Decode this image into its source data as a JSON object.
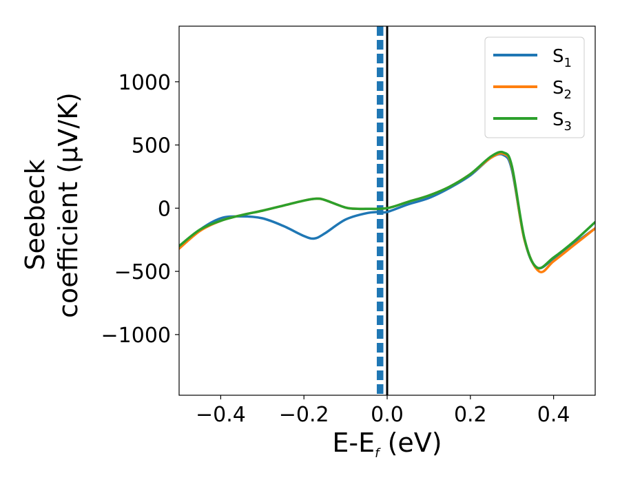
{
  "chart_data": {
    "type": "line",
    "xlabel": "E-E",
    "xlabel_sub": "f",
    "xlabel_unit": " (eV)",
    "ylabel_line1": "Seebeck",
    "ylabel_line2": "coefficient  (μV/K)",
    "xlim": [
      -0.5,
      0.5
    ],
    "ylim": [
      -1480,
      1440
    ],
    "xticks": [
      -0.4,
      -0.2,
      0.0,
      0.2,
      0.4
    ],
    "xtick_labels": [
      "−0.4",
      "−0.2",
      "0.0",
      "0.2",
      "0.4"
    ],
    "yticks": [
      1000,
      500,
      0,
      -500,
      -1000
    ],
    "ytick_labels": [
      "1000",
      "500",
      "0",
      "−500",
      "−1000"
    ],
    "legend_position": "top-right",
    "grid": false,
    "vertical_lines": [
      {
        "x": -0.022,
        "color": "#1f77b4",
        "style": "dashed"
      },
      {
        "x": -0.017,
        "color": "#1f77b4",
        "style": "dashed"
      },
      {
        "x": -0.012,
        "color": "#1f77b4",
        "style": "dashed"
      },
      {
        "x": 0.0,
        "color": "#000000",
        "style": "solid"
      }
    ],
    "series": [
      {
        "name": "S",
        "sub": "1",
        "color": "#1f77b4",
        "x": [
          -0.5,
          -0.45,
          -0.4,
          -0.35,
          -0.3,
          -0.25,
          -0.2,
          -0.175,
          -0.15,
          -0.1,
          -0.05,
          -0.02,
          0.0,
          0.05,
          0.1,
          0.15,
          0.2,
          0.25,
          0.28,
          0.3,
          0.33,
          0.36,
          0.4,
          0.45,
          0.5
        ],
        "y": [
          -300,
          -170,
          -80,
          -65,
          -80,
          -140,
          -220,
          -240,
          -200,
          -90,
          -40,
          -30,
          -30,
          30,
          80,
          160,
          260,
          400,
          420,
          300,
          -250,
          -470,
          -400,
          -280,
          -160
        ]
      },
      {
        "name": "S",
        "sub": "2",
        "color": "#ff7f0e",
        "x": [
          -0.5,
          -0.45,
          -0.4,
          -0.35,
          -0.3,
          -0.25,
          -0.2,
          -0.17,
          -0.15,
          -0.1,
          -0.07,
          -0.05,
          0.0,
          0.05,
          0.1,
          0.15,
          0.2,
          0.25,
          0.28,
          0.3,
          0.33,
          0.365,
          0.4,
          0.45,
          0.5
        ],
        "y": [
          -320,
          -180,
          -100,
          -55,
          -20,
          20,
          60,
          75,
          65,
          5,
          -5,
          -5,
          0,
          50,
          100,
          170,
          270,
          400,
          430,
          320,
          -250,
          -500,
          -420,
          -290,
          -160
        ]
      },
      {
        "name": "S",
        "sub": "3",
        "color": "#2ca02c",
        "x": [
          -0.5,
          -0.45,
          -0.4,
          -0.35,
          -0.3,
          -0.25,
          -0.2,
          -0.17,
          -0.15,
          -0.1,
          -0.07,
          -0.05,
          0.0,
          0.05,
          0.1,
          0.15,
          0.2,
          0.25,
          0.28,
          0.3,
          0.33,
          0.36,
          0.4,
          0.45,
          0.5
        ],
        "y": [
          -300,
          -170,
          -100,
          -55,
          -20,
          20,
          60,
          75,
          65,
          5,
          -5,
          -5,
          0,
          50,
          100,
          170,
          270,
          410,
          440,
          330,
          -240,
          -470,
          -390,
          -260,
          -110
        ]
      }
    ]
  }
}
